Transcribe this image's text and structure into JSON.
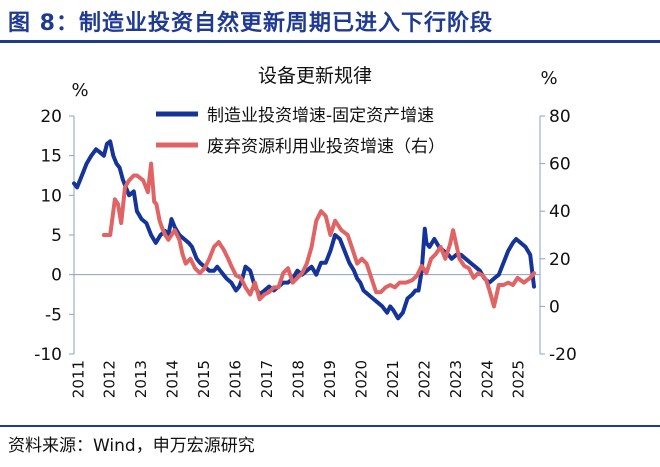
{
  "figure": {
    "title": "图 8：制造业投资自然更新周期已进入下行阶段",
    "source": "资料来源：Wind，申万宏源研究"
  },
  "colors": {
    "brand": "#1f3a93",
    "left_series": "#14349a",
    "right_series": "#e06464",
    "axis": "#8aa0c8"
  },
  "chart_data": {
    "type": "line",
    "title": "设备更新规律",
    "left_axis": {
      "unit": "%",
      "ylim": [
        -10,
        20
      ],
      "ticks": [
        20,
        15,
        10,
        5,
        0,
        -5,
        -10
      ]
    },
    "right_axis": {
      "unit": "%",
      "ylim": [
        -20,
        80
      ],
      "ticks": [
        80,
        60,
        40,
        20,
        0,
        -20
      ]
    },
    "x_axis": {
      "ticks": [
        "2011",
        "2012",
        "2013",
        "2014",
        "2015",
        "2016",
        "2017",
        "2018",
        "2019",
        "2020",
        "2021",
        "2022",
        "2023",
        "2024",
        "2025"
      ]
    },
    "grid": false,
    "legend_position": "top-center",
    "series": [
      {
        "name": "制造业投资增速-固定资产增速",
        "axis": "left",
        "x": [
          2011.0,
          2011.1,
          2011.25,
          2011.4,
          2011.55,
          2011.7,
          2011.8,
          2011.95,
          2012.05,
          2012.15,
          2012.25,
          2012.35,
          2012.45,
          2012.55,
          2012.65,
          2012.75,
          2012.9,
          2013.0,
          2013.15,
          2013.3,
          2013.45,
          2013.6,
          2013.75,
          2013.9,
          2014.0,
          2014.1,
          2014.2,
          2014.35,
          2014.5,
          2014.65,
          2014.75,
          2014.9,
          2015.0,
          2015.15,
          2015.3,
          2015.45,
          2015.55,
          2015.65,
          2015.75,
          2015.85,
          2016.0,
          2016.15,
          2016.25,
          2016.35,
          2016.45,
          2016.6,
          2016.75,
          2016.9,
          2017.05,
          2017.2,
          2017.35,
          2017.5,
          2017.65,
          2017.8,
          2017.95,
          2018.1,
          2018.25,
          2018.4,
          2018.55,
          2018.7,
          2018.85,
          2019.0,
          2019.15,
          2019.3,
          2019.45,
          2019.6,
          2019.75,
          2019.9,
          2020.0,
          2020.1,
          2020.2,
          2020.35,
          2020.5,
          2020.65,
          2020.8,
          2020.95,
          2021.05,
          2021.15,
          2021.3,
          2021.45,
          2021.6,
          2021.75,
          2021.85,
          2021.95,
          2022.05,
          2022.15,
          2022.2,
          2022.3,
          2022.45,
          2022.6,
          2022.75,
          2022.9,
          2023.0,
          2023.15,
          2023.3,
          2023.45,
          2023.6,
          2023.75,
          2023.9,
          2024.05,
          2024.2,
          2024.35,
          2024.5,
          2024.65,
          2024.8,
          2024.95,
          2025.05,
          2025.2,
          2025.35,
          2025.5,
          2025.62
        ],
        "values": [
          11.5,
          11.0,
          12.5,
          14.0,
          15.0,
          15.8,
          15.5,
          15.0,
          16.5,
          16.8,
          15.0,
          14.0,
          13.5,
          12.0,
          11.0,
          10.0,
          10.5,
          8.0,
          7.0,
          6.5,
          5.0,
          4.0,
          5.0,
          5.5,
          5.0,
          7.0,
          6.0,
          5.0,
          4.5,
          4.0,
          3.5,
          2.0,
          1.5,
          1.0,
          0.5,
          0.5,
          1.0,
          0.5,
          0.0,
          -0.5,
          -1.0,
          -2.0,
          -1.5,
          -0.5,
          1.0,
          0.5,
          -1.5,
          -2.5,
          -2.0,
          -1.5,
          -2.0,
          -1.5,
          -1.0,
          -1.0,
          -0.5,
          0.5,
          0.0,
          0.5,
          1.0,
          0.0,
          1.5,
          1.5,
          3.0,
          5.0,
          4.5,
          3.0,
          1.5,
          0.5,
          -0.5,
          -1.0,
          -2.0,
          -2.5,
          -3.0,
          -3.5,
          -4.0,
          -4.8,
          -4.0,
          -4.5,
          -5.5,
          -4.8,
          -3.0,
          -2.5,
          -2.0,
          -2.0,
          0.5,
          5.8,
          4.0,
          3.5,
          4.5,
          3.5,
          3.0,
          2.5,
          2.0,
          2.5,
          2.5,
          2.0,
          1.5,
          1.0,
          0.5,
          -0.5,
          -1.0,
          -0.5,
          0.0,
          1.5,
          3.0,
          4.0,
          4.5,
          4.0,
          3.5,
          2.5,
          -1.5
        ]
      },
      {
        "name": "废弃资源利用业投资增速（右）",
        "axis": "right",
        "x": [
          2011.95,
          2012.05,
          2012.15,
          2012.3,
          2012.4,
          2012.5,
          2012.62,
          2012.75,
          2012.9,
          2013.0,
          2013.2,
          2013.35,
          2013.45,
          2013.55,
          2013.62,
          2013.72,
          2013.8,
          2013.9,
          2014.0,
          2014.1,
          2014.2,
          2014.35,
          2014.45,
          2014.55,
          2014.7,
          2014.85,
          2015.0,
          2015.15,
          2015.3,
          2015.45,
          2015.6,
          2015.75,
          2015.9,
          2016.0,
          2016.15,
          2016.3,
          2016.45,
          2016.6,
          2016.75,
          2016.9,
          2017.05,
          2017.2,
          2017.35,
          2017.5,
          2017.65,
          2017.8,
          2017.95,
          2018.1,
          2018.25,
          2018.4,
          2018.55,
          2018.7,
          2018.85,
          2019.0,
          2019.15,
          2019.3,
          2019.5,
          2019.7,
          2019.85,
          2020.0,
          2020.15,
          2020.3,
          2020.45,
          2020.6,
          2020.75,
          2020.9,
          2021.05,
          2021.2,
          2021.35,
          2021.55,
          2021.75,
          2021.9,
          2022.05,
          2022.2,
          2022.35,
          2022.5,
          2022.65,
          2022.8,
          2022.95,
          2023.05,
          2023.15,
          2023.25,
          2023.4,
          2023.55,
          2023.7,
          2023.85,
          2024.0,
          2024.1,
          2024.2,
          2024.35,
          2024.5,
          2024.65,
          2024.8,
          2024.95,
          2025.1,
          2025.3,
          2025.5,
          2025.62
        ],
        "values": [
          30,
          30,
          30,
          45,
          43,
          35,
          50,
          53,
          55,
          55,
          53,
          48,
          60,
          44,
          43,
          36,
          33,
          30,
          28,
          30,
          32,
          28,
          22,
          18,
          20,
          16,
          14,
          16,
          20,
          25,
          27,
          24,
          20,
          17,
          13,
          12,
          8,
          5,
          10,
          3,
          5,
          6,
          8,
          8,
          14,
          16,
          10,
          12,
          14,
          18,
          25,
          36,
          40,
          38,
          30,
          36,
          32,
          30,
          24,
          18,
          20,
          18,
          12,
          6,
          6,
          8,
          9,
          8,
          10,
          10,
          11,
          13,
          17,
          14,
          20,
          22,
          25,
          20,
          26,
          32,
          26,
          20,
          17,
          16,
          12,
          14,
          13,
          11,
          7,
          0,
          9,
          9,
          10,
          9,
          12,
          10,
          12,
          14
        ]
      }
    ]
  }
}
